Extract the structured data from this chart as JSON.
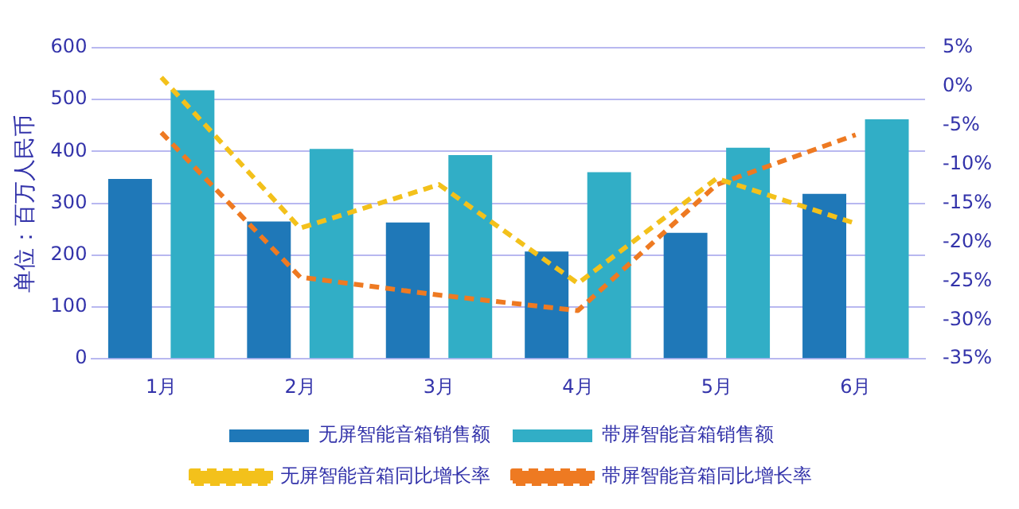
{
  "chart_data": {
    "type": "bar",
    "ylabel": "单位：百万人民币",
    "categories": [
      "1月",
      "2月",
      "3月",
      "4月",
      "5月",
      "6月"
    ],
    "series": [
      {
        "name": "无屏智能音箱销售额",
        "color": "#1f78b8",
        "values": [
          347,
          265,
          263,
          207,
          243,
          318
        ]
      },
      {
        "name": "带屏智能音箱销售额",
        "color": "#31aec6",
        "values": [
          518,
          405,
          393,
          360,
          407,
          462
        ]
      },
      {
        "name": "无屏智能音箱同比增长率",
        "type": "line",
        "axis": "y2",
        "line_style": "dashed",
        "color": "#f3c11b",
        "values": [
          1.2,
          -18.2,
          -12.6,
          -25.3,
          -11.8,
          -17.6
        ]
      },
      {
        "name": "带屏智能音箱同比增长率",
        "type": "line",
        "axis": "y2",
        "line_style": "dashed",
        "color": "#ee7a22",
        "values": [
          -5.9,
          -24.5,
          -26.8,
          -28.8,
          -12.6,
          -6.2
        ]
      }
    ],
    "ylim": [
      0,
      600
    ],
    "yticks": [
      0,
      100,
      200,
      300,
      400,
      500,
      600
    ],
    "y2lim": [
      -35,
      5
    ],
    "y2ticks": [
      {
        "value": 5,
        "label": "5%"
      },
      {
        "value": 0,
        "label": "0%"
      },
      {
        "value": -5,
        "label": "-5%"
      },
      {
        "value": -10,
        "label": "-10%"
      },
      {
        "value": -15,
        "label": "-15%"
      },
      {
        "value": -20,
        "label": "-20%"
      },
      {
        "value": -25,
        "label": "-25%"
      },
      {
        "value": -30,
        "label": "-30%"
      },
      {
        "value": -35,
        "label": "-35%"
      }
    ],
    "grid": "y",
    "legend": "bottom",
    "marker": "none"
  }
}
